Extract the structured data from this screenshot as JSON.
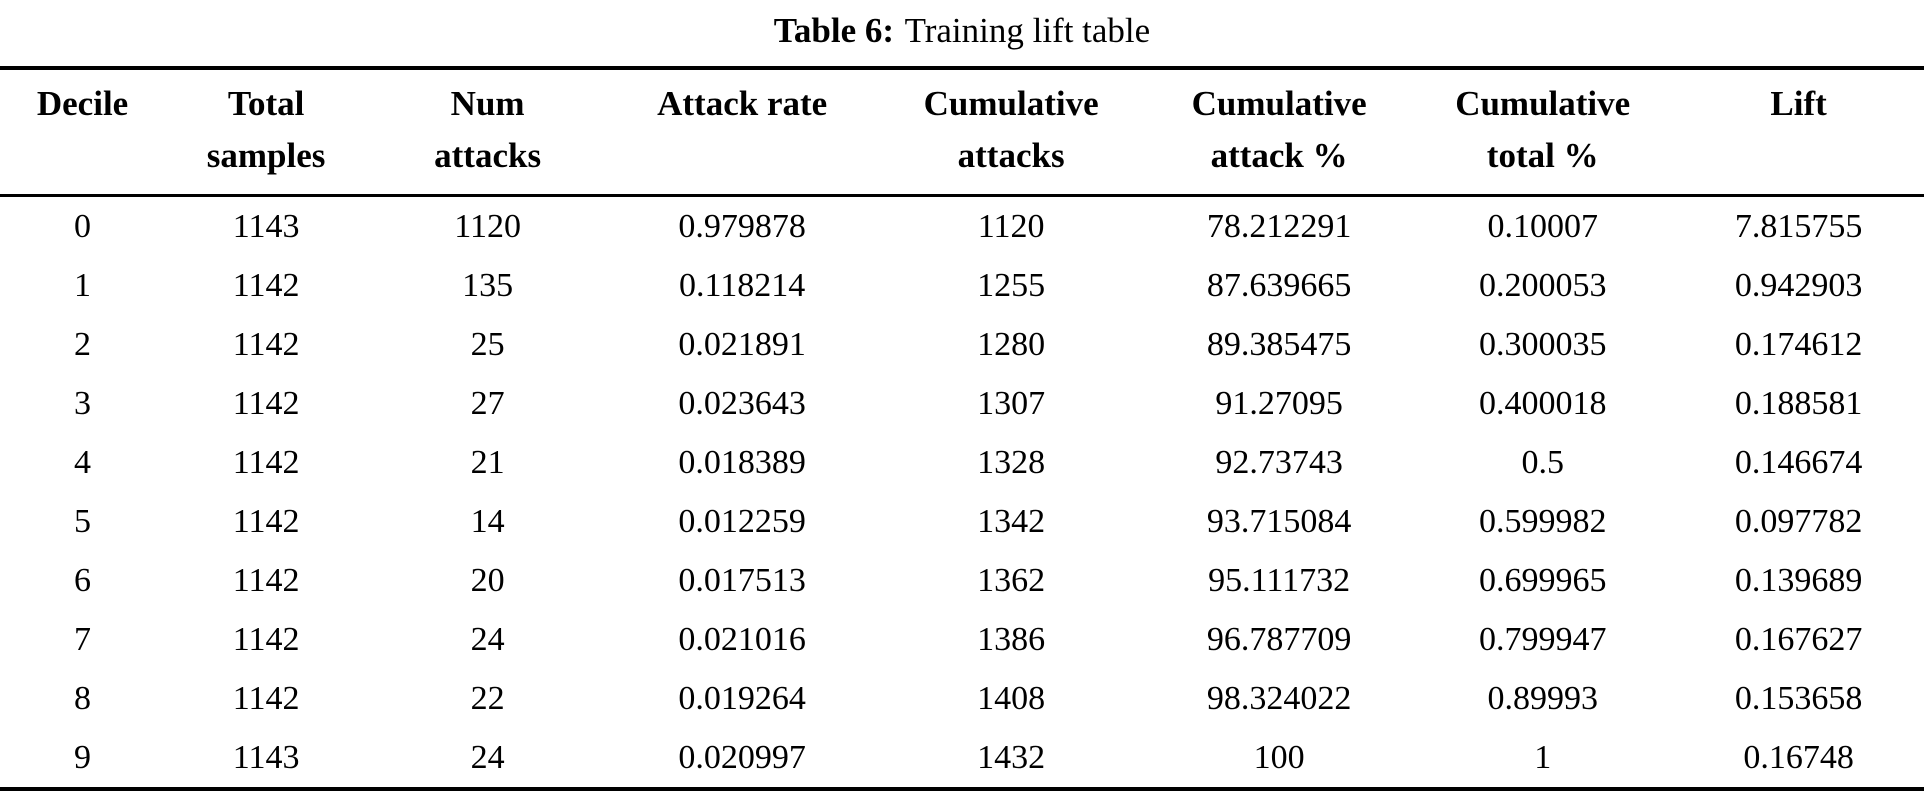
{
  "title": {
    "label": "Table 6:",
    "text": "Training lift table"
  },
  "table": {
    "headers": [
      {
        "line1": "Decile",
        "line2": ""
      },
      {
        "line1": "Total",
        "line2": "samples"
      },
      {
        "line1": "Num",
        "line2": "attacks"
      },
      {
        "line1": "Attack rate",
        "line2": ""
      },
      {
        "line1": "Cumulative",
        "line2": "attacks"
      },
      {
        "line1": "Cumulative",
        "line2": "attack %"
      },
      {
        "line1": "Cumulative",
        "line2": "total %"
      },
      {
        "line1": "Lift",
        "line2": ""
      }
    ],
    "rows": [
      [
        "0",
        "1143",
        "1120",
        "0.979878",
        "1120",
        "78.212291",
        "0.10007",
        "7.815755"
      ],
      [
        "1",
        "1142",
        "135",
        "0.118214",
        "1255",
        "87.639665",
        "0.200053",
        "0.942903"
      ],
      [
        "2",
        "1142",
        "25",
        "0.021891",
        "1280",
        "89.385475",
        "0.300035",
        "0.174612"
      ],
      [
        "3",
        "1142",
        "27",
        "0.023643",
        "1307",
        "91.27095",
        "0.400018",
        "0.188581"
      ],
      [
        "4",
        "1142",
        "21",
        "0.018389",
        "1328",
        "92.73743",
        "0.5",
        "0.146674"
      ],
      [
        "5",
        "1142",
        "14",
        "0.012259",
        "1342",
        "93.715084",
        "0.599982",
        "0.097782"
      ],
      [
        "6",
        "1142",
        "20",
        "0.017513",
        "1362",
        "95.111732",
        "0.699965",
        "0.139689"
      ],
      [
        "7",
        "1142",
        "24",
        "0.021016",
        "1386",
        "96.787709",
        "0.799947",
        "0.167627"
      ],
      [
        "8",
        "1142",
        "22",
        "0.019264",
        "1408",
        "98.324022",
        "0.89993",
        "0.153658"
      ],
      [
        "9",
        "1143",
        "24",
        "0.020997",
        "1432",
        "100",
        "1",
        "0.16748"
      ]
    ]
  }
}
